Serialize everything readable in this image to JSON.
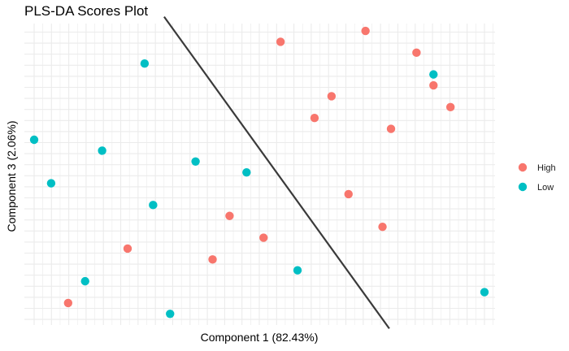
{
  "chart_data": {
    "type": "scatter",
    "title": "PLS-DA Scores Plot",
    "xlabel": "Component 1 (82.43%)",
    "ylabel": "Component 3 (2.06%)",
    "xlim": [
      0,
      26.5
    ],
    "ylim": [
      0,
      27.4
    ],
    "grid": true,
    "legend_position": "right",
    "legend": [
      {
        "name": "High",
        "color": "#F8766D"
      },
      {
        "name": "Low",
        "color": "#00BFC4"
      }
    ],
    "series": [
      {
        "name": "High",
        "color": "#F8766D",
        "points": [
          [
            14.5,
            25.5
          ],
          [
            19.5,
            26.5
          ],
          [
            22.5,
            24.5
          ],
          [
            23.5,
            21.5
          ],
          [
            17.5,
            20.5
          ],
          [
            16.5,
            18.5
          ],
          [
            24.5,
            19.5
          ],
          [
            21.0,
            17.5
          ],
          [
            18.5,
            11.5
          ],
          [
            11.5,
            9.5
          ],
          [
            13.5,
            7.5
          ],
          [
            20.5,
            8.5
          ],
          [
            5.5,
            6.5
          ],
          [
            10.5,
            5.5
          ],
          [
            2.0,
            1.5
          ]
        ]
      },
      {
        "name": "Low",
        "color": "#00BFC4",
        "points": [
          [
            6.5,
            23.5
          ],
          [
            23.5,
            22.5
          ],
          [
            0.0,
            16.5
          ],
          [
            4.0,
            15.5
          ],
          [
            9.5,
            14.5
          ],
          [
            12.5,
            13.5
          ],
          [
            1.0,
            12.5
          ],
          [
            7.0,
            10.5
          ],
          [
            15.5,
            4.5
          ],
          [
            3.0,
            3.5
          ],
          [
            26.5,
            2.5
          ],
          [
            8.0,
            0.5
          ]
        ]
      }
    ],
    "boundary_line": {
      "x1": 7.65,
      "y1": 27.8,
      "x2": 20.9,
      "y2": -0.85,
      "color": "#3a3a3a"
    }
  }
}
